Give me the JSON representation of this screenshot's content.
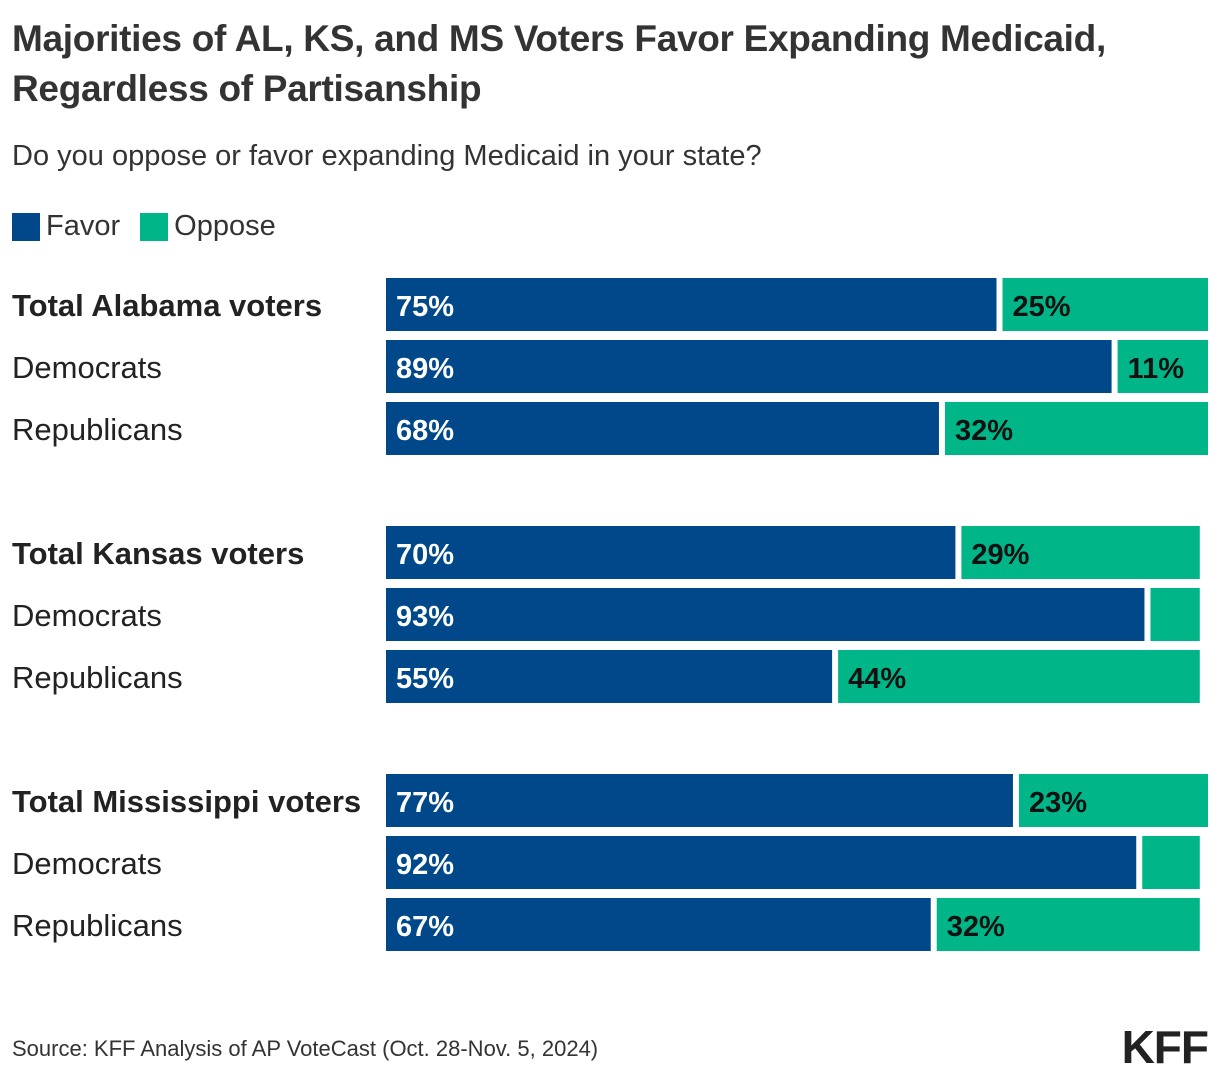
{
  "title": "Majorities of AL, KS, and MS Voters Favor Expanding Medicaid, Regardless of Partisanship",
  "subtitle": "Do you oppose or favor expanding Medicaid in your state?",
  "source": "Source: KFF Analysis of AP VoteCast (Oct. 28-Nov. 5, 2024)",
  "logo": "KFF",
  "colors": {
    "favor": "#00488a",
    "oppose": "#00b688"
  },
  "chart_data": {
    "type": "bar",
    "orientation": "horizontal",
    "stacked": true,
    "xlim": [
      0,
      100
    ],
    "unit": "%",
    "legend": [
      "Favor",
      "Oppose"
    ],
    "legend_position": "top-left",
    "groups": [
      {
        "rows": [
          {
            "label": "Total Alabama voters",
            "bold": true,
            "favor": 75,
            "oppose": 25
          },
          {
            "label": "Democrats",
            "bold": false,
            "favor": 89,
            "oppose": 11
          },
          {
            "label": "Republicans",
            "bold": false,
            "favor": 68,
            "oppose": 32
          }
        ]
      },
      {
        "rows": [
          {
            "label": "Total Kansas voters",
            "bold": true,
            "favor": 70,
            "oppose": 29
          },
          {
            "label": "Democrats",
            "bold": false,
            "favor": 93,
            "oppose": 6,
            "oppose_labeled": false
          },
          {
            "label": "Republicans",
            "bold": false,
            "favor": 55,
            "oppose": 44
          }
        ]
      },
      {
        "rows": [
          {
            "label": "Total Mississippi voters",
            "bold": true,
            "favor": 77,
            "oppose": 23
          },
          {
            "label": "Democrats",
            "bold": false,
            "favor": 92,
            "oppose": 7,
            "oppose_labeled": false
          },
          {
            "label": "Republicans",
            "bold": false,
            "favor": 67,
            "oppose": 32
          }
        ]
      }
    ]
  }
}
